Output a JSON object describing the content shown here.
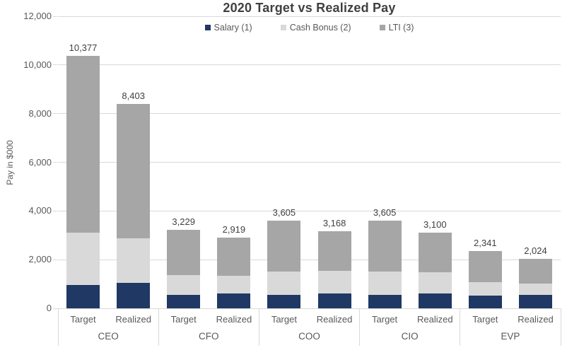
{
  "chart_data": {
    "type": "bar",
    "variant": "stacked-column",
    "title": "2020 Target vs Realized Pay",
    "ylabel": "Pay in $000",
    "xlabel": "",
    "ylim": [
      0,
      12000
    ],
    "ytick_interval": 2000,
    "yticks": [
      "0",
      "2,000",
      "4,000",
      "6,000",
      "8,000",
      "10,000",
      "12,000"
    ],
    "grid": "horizontal",
    "legend_position": "top-center",
    "legend": [
      {
        "key": "salary",
        "label": "Salary (1)",
        "color": "#1f3864"
      },
      {
        "key": "cash_bonus",
        "label": "Cash Bonus (2)",
        "color": "#d9d9d9"
      },
      {
        "key": "lti",
        "label": "LTI (3)",
        "color": "#a6a6a6"
      }
    ],
    "groups": [
      {
        "name": "CEO",
        "bars": [
          {
            "label": "Target",
            "total": 10377,
            "total_label": "10,377",
            "salary": 950,
            "cash_bonus": 2150,
            "lti": 7277
          },
          {
            "label": "Realized",
            "total": 8403,
            "total_label": "8,403",
            "salary": 1050,
            "cash_bonus": 1815,
            "lti": 5538
          }
        ]
      },
      {
        "name": "CFO",
        "bars": [
          {
            "label": "Target",
            "total": 3229,
            "total_label": "3,229",
            "salary": 550,
            "cash_bonus": 825,
            "lti": 1854
          },
          {
            "label": "Realized",
            "total": 2919,
            "total_label": "2,919",
            "salary": 600,
            "cash_bonus": 725,
            "lti": 1594
          }
        ]
      },
      {
        "name": "COO",
        "bars": [
          {
            "label": "Target",
            "total": 3605,
            "total_label": "3,605",
            "salary": 550,
            "cash_bonus": 950,
            "lti": 2105
          },
          {
            "label": "Realized",
            "total": 3168,
            "total_label": "3,168",
            "salary": 620,
            "cash_bonus": 925,
            "lti": 1623
          }
        ]
      },
      {
        "name": "CIO",
        "bars": [
          {
            "label": "Target",
            "total": 3605,
            "total_label": "3,605",
            "salary": 550,
            "cash_bonus": 950,
            "lti": 2105
          },
          {
            "label": "Realized",
            "total": 3100,
            "total_label": "3,100",
            "salary": 600,
            "cash_bonus": 890,
            "lti": 1610
          }
        ]
      },
      {
        "name": "EVP",
        "bars": [
          {
            "label": "Target",
            "total": 2341,
            "total_label": "2,341",
            "salary": 525,
            "cash_bonus": 550,
            "lti": 1266
          },
          {
            "label": "Realized",
            "total": 2024,
            "total_label": "2,024",
            "salary": 560,
            "cash_bonus": 470,
            "lti": 994
          }
        ]
      }
    ],
    "colors": {
      "salary": "#1f3864",
      "cash_bonus": "#d9d9d9",
      "lti": "#a6a6a6",
      "gridline": "#d9d9d9",
      "axis_text": "#595959",
      "label_text": "#404040",
      "background": "#ffffff"
    }
  }
}
